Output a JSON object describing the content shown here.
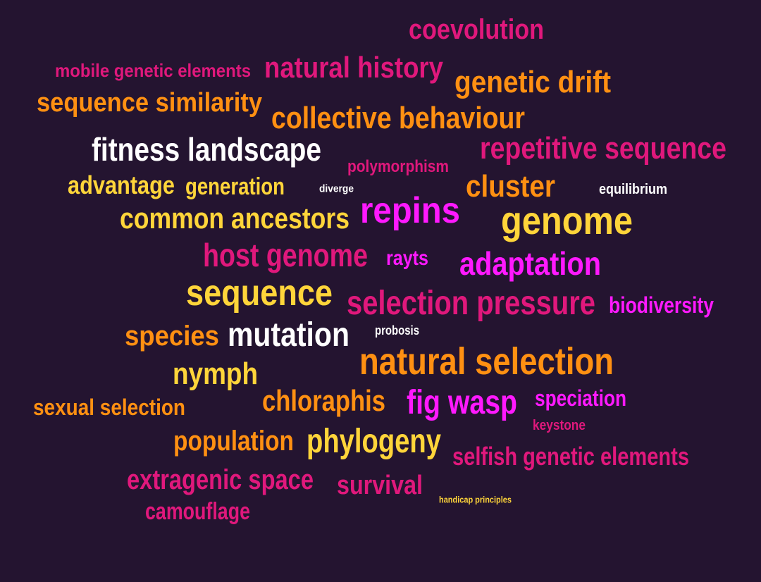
{
  "colors": {
    "background": "#241430",
    "magenta": "#ff19ff",
    "pink": "#e0187c",
    "orange": "#ff9012",
    "yellow": "#ffd53a",
    "white": "#ffffff"
  },
  "words": [
    {
      "text": "coevolution",
      "color": "pink"
    },
    {
      "text": "mobile genetic elements",
      "color": "pink"
    },
    {
      "text": "natural history",
      "color": "pink"
    },
    {
      "text": "genetic drift",
      "color": "orange"
    },
    {
      "text": "sequence similarity",
      "color": "orange"
    },
    {
      "text": "collective behaviour",
      "color": "orange"
    },
    {
      "text": "fitness landscape",
      "color": "white"
    },
    {
      "text": "repetitive sequence",
      "color": "pink"
    },
    {
      "text": "polymorphism",
      "color": "pink"
    },
    {
      "text": "advantage",
      "color": "yellow"
    },
    {
      "text": "generation",
      "color": "yellow"
    },
    {
      "text": "diverge",
      "color": "white"
    },
    {
      "text": "cluster",
      "color": "orange"
    },
    {
      "text": "equilibrium",
      "color": "white"
    },
    {
      "text": "repins",
      "color": "magenta"
    },
    {
      "text": "common ancestors",
      "color": "yellow"
    },
    {
      "text": "genome",
      "color": "yellow"
    },
    {
      "text": "host genome",
      "color": "pink"
    },
    {
      "text": "rayts",
      "color": "magenta"
    },
    {
      "text": "adaptation",
      "color": "magenta"
    },
    {
      "text": "sequence",
      "color": "yellow"
    },
    {
      "text": "selection pressure",
      "color": "pink"
    },
    {
      "text": "biodiversity",
      "color": "magenta"
    },
    {
      "text": "species",
      "color": "orange"
    },
    {
      "text": "mutation",
      "color": "white"
    },
    {
      "text": "probosis",
      "color": "white"
    },
    {
      "text": "natural selection",
      "color": "orange"
    },
    {
      "text": "nymph",
      "color": "yellow"
    },
    {
      "text": "chloraphis",
      "color": "orange"
    },
    {
      "text": "fig wasp",
      "color": "magenta"
    },
    {
      "text": "speciation",
      "color": "magenta"
    },
    {
      "text": "sexual selection",
      "color": "orange"
    },
    {
      "text": "keystone",
      "color": "pink"
    },
    {
      "text": "population",
      "color": "orange"
    },
    {
      "text": "phylogeny",
      "color": "yellow"
    },
    {
      "text": "selfish genetic elements",
      "color": "pink"
    },
    {
      "text": "extragenic space",
      "color": "pink"
    },
    {
      "text": "survival",
      "color": "pink"
    },
    {
      "text": "handicap principles",
      "color": "yellow"
    },
    {
      "text": "camouflage",
      "color": "pink"
    }
  ]
}
